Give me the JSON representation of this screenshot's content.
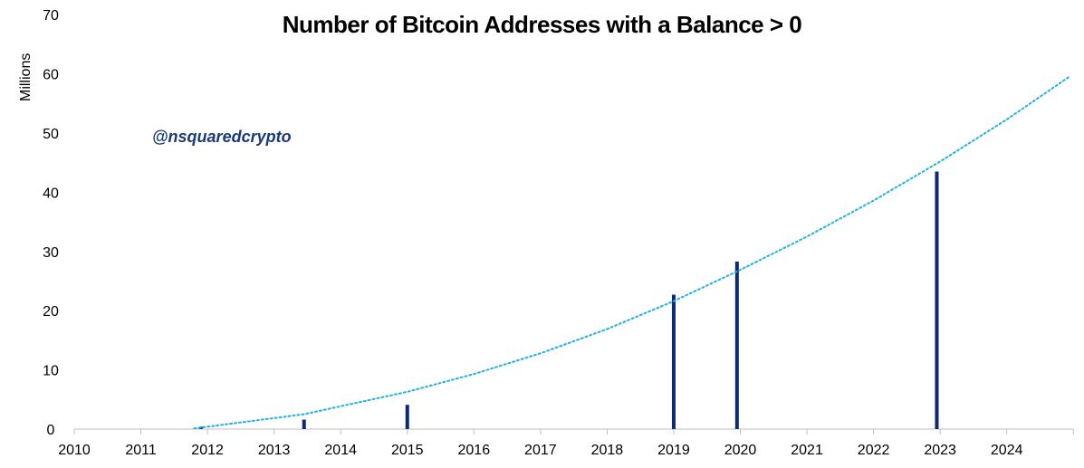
{
  "chart_data": {
    "type": "bar",
    "title": "Number of Bitcoin Addresses with a Balance > 0",
    "ylabel": "Millions",
    "xlabel": "",
    "annotation": "@nsquaredcrypto",
    "xlim": [
      2010,
      2025
    ],
    "ylim": [
      0,
      70
    ],
    "x_ticks": [
      "2010",
      "2011",
      "2012",
      "2013",
      "2014",
      "2015",
      "2016",
      "2017",
      "2018",
      "2019",
      "2020",
      "2021",
      "2022",
      "2023",
      "2024"
    ],
    "y_ticks": [
      "0",
      "10",
      "20",
      "30",
      "40",
      "50",
      "60",
      "70"
    ],
    "grid": false,
    "series": [
      {
        "type": "bar",
        "color": "#0b2a6f",
        "points": [
          {
            "x": 2011.9,
            "y": 0.4
          },
          {
            "x": 2013.45,
            "y": 1.6
          },
          {
            "x": 2015.0,
            "y": 4.1
          },
          {
            "x": 2019.0,
            "y": 22.7
          },
          {
            "x": 2019.95,
            "y": 28.3
          },
          {
            "x": 2022.95,
            "y": 43.5
          }
        ]
      },
      {
        "type": "line",
        "style": "dotted",
        "color": "#22b2e0",
        "points": [
          {
            "x": 2011.8,
            "y": 0.1
          },
          {
            "x": 2013.45,
            "y": 2.5
          },
          {
            "x": 2015.0,
            "y": 6.3
          },
          {
            "x": 2016.0,
            "y": 9.3
          },
          {
            "x": 2017.0,
            "y": 12.8
          },
          {
            "x": 2018.0,
            "y": 16.9
          },
          {
            "x": 2019.0,
            "y": 21.6
          },
          {
            "x": 2020.0,
            "y": 26.9
          },
          {
            "x": 2021.0,
            "y": 32.5
          },
          {
            "x": 2022.0,
            "y": 38.6
          },
          {
            "x": 2023.0,
            "y": 45.2
          },
          {
            "x": 2024.0,
            "y": 52.3
          },
          {
            "x": 2024.95,
            "y": 59.6
          }
        ]
      }
    ]
  }
}
